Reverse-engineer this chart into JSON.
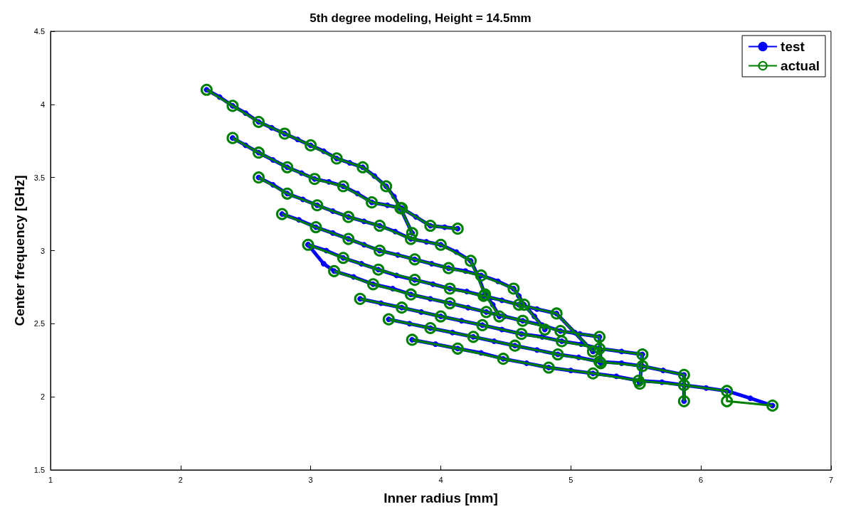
{
  "chart_data": {
    "type": "line",
    "title": "5th degree modeling, Height = 14.5mm",
    "xlabel": "Inner radius [mm]",
    "ylabel": "Center frequency [GHz]",
    "xlim": [
      1,
      7
    ],
    "ylim": [
      1.5,
      4.5
    ],
    "xticks": [
      1,
      2,
      3,
      4,
      5,
      6,
      7
    ],
    "yticks": [
      1.5,
      2,
      2.5,
      3,
      3.5,
      4,
      4.5
    ],
    "grid": false,
    "legend": "top right",
    "series": [
      {
        "name": "test",
        "color": "#0000ff",
        "marker": "circle",
        "x": [
          2.2,
          2.3,
          2.4,
          2.5,
          2.6,
          2.7,
          2.8,
          2.9,
          3.0,
          3.1,
          3.2,
          3.3,
          3.4,
          3.49,
          3.58,
          3.64,
          3.69,
          3.78,
          null,
          2.4,
          2.5,
          2.6,
          2.71,
          2.82,
          2.93,
          3.03,
          3.14,
          3.25,
          3.36,
          3.47,
          3.59,
          3.7,
          3.81,
          3.92,
          4.03,
          4.13,
          null,
          2.6,
          2.71,
          2.82,
          2.94,
          3.05,
          3.17,
          3.29,
          3.41,
          3.53,
          3.65,
          3.77,
          3.89,
          4.0,
          4.12,
          4.23,
          4.29,
          4.34,
          4.4,
          4.45,
          null,
          2.78,
          2.91,
          3.04,
          3.17,
          3.29,
          3.41,
          3.53,
          3.67,
          3.8,
          3.93,
          4.06,
          4.19,
          4.31,
          4.44,
          4.56,
          4.6,
          4.64,
          4.72,
          4.8,
          null,
          2.98,
          3.12,
          3.25,
          3.39,
          3.52,
          3.66,
          3.8,
          3.94,
          4.07,
          4.2,
          4.33,
          4.47,
          4.6,
          4.74,
          4.89,
          5.03,
          5.17,
          null,
          2.98,
          3.1,
          3.18,
          3.33,
          3.48,
          3.63,
          3.77,
          3.92,
          4.07,
          4.21,
          4.35,
          4.49,
          4.63,
          4.78,
          4.92,
          5.07,
          5.22,
          5.23,
          null,
          3.38,
          3.54,
          3.7,
          3.85,
          4.0,
          4.16,
          4.32,
          4.47,
          4.62,
          4.78,
          4.93,
          5.08,
          5.22,
          5.39,
          5.55,
          5.53,
          null,
          3.6,
          3.76,
          3.92,
          4.09,
          4.25,
          4.41,
          4.57,
          4.74,
          4.9,
          5.06,
          5.22,
          5.39,
          5.55,
          5.71,
          5.87,
          5.87,
          null,
          3.78,
          3.96,
          4.13,
          4.31,
          4.48,
          4.66,
          4.83,
          5.0,
          5.17,
          5.35,
          5.52,
          5.7,
          5.87,
          6.04,
          6.2,
          6.38,
          6.55
        ],
        "values": [
          4.1,
          4.05,
          3.99,
          3.94,
          3.88,
          3.84,
          3.8,
          3.76,
          3.72,
          3.68,
          3.63,
          3.6,
          3.57,
          3.51,
          3.44,
          3.37,
          3.29,
          3.12,
          null,
          3.77,
          3.72,
          3.67,
          3.62,
          3.57,
          3.53,
          3.49,
          3.47,
          3.44,
          3.39,
          3.33,
          3.31,
          3.29,
          3.23,
          3.17,
          3.16,
          3.15,
          null,
          3.5,
          3.45,
          3.39,
          3.35,
          3.31,
          3.27,
          3.23,
          3.2,
          3.17,
          3.13,
          3.08,
          3.06,
          3.04,
          2.99,
          2.93,
          2.82,
          2.7,
          2.63,
          2.55,
          null,
          3.25,
          3.21,
          3.16,
          3.12,
          3.08,
          3.04,
          3.0,
          2.97,
          2.94,
          2.91,
          2.88,
          2.86,
          2.83,
          2.79,
          2.74,
          2.69,
          2.63,
          2.55,
          2.46,
          null,
          3.04,
          3.0,
          2.95,
          2.91,
          2.87,
          2.83,
          2.8,
          2.77,
          2.74,
          2.72,
          2.69,
          2.66,
          2.63,
          2.6,
          2.57,
          2.44,
          2.31,
          null,
          3.04,
          2.91,
          2.86,
          2.82,
          2.77,
          2.74,
          2.7,
          2.67,
          2.64,
          2.61,
          2.58,
          2.55,
          2.52,
          2.49,
          2.45,
          2.43,
          2.41,
          2.23,
          null,
          2.67,
          2.64,
          2.61,
          2.58,
          2.55,
          2.52,
          2.49,
          2.46,
          2.43,
          2.41,
          2.38,
          2.36,
          2.33,
          2.31,
          2.29,
          2.09,
          null,
          2.53,
          2.5,
          2.47,
          2.44,
          2.41,
          2.38,
          2.35,
          2.32,
          2.29,
          2.27,
          2.24,
          2.23,
          2.21,
          2.18,
          2.15,
          1.97,
          null,
          2.39,
          2.36,
          2.33,
          2.3,
          2.26,
          2.23,
          2.2,
          2.18,
          2.16,
          2.14,
          2.11,
          2.1,
          2.08,
          2.06,
          2.04,
          1.99,
          1.94
        ]
      },
      {
        "name": "actual",
        "color": "#008000",
        "marker": "circle",
        "x": [
          2.2,
          2.4,
          2.6,
          2.8,
          3.0,
          3.2,
          3.4,
          3.58,
          3.69,
          3.78,
          null,
          2.4,
          2.6,
          2.82,
          3.03,
          3.25,
          3.47,
          3.7,
          3.92,
          4.13,
          null,
          2.6,
          2.82,
          3.05,
          3.29,
          3.53,
          3.77,
          4.0,
          4.23,
          4.34,
          4.45,
          null,
          2.78,
          3.04,
          3.29,
          3.53,
          3.8,
          4.06,
          4.31,
          4.56,
          4.64,
          4.8,
          null,
          2.98,
          3.25,
          3.52,
          3.8,
          4.07,
          4.33,
          4.6,
          4.89,
          5.17,
          null,
          3.18,
          3.48,
          3.77,
          4.07,
          4.35,
          4.63,
          4.92,
          5.22,
          5.23,
          null,
          3.38,
          3.7,
          4.0,
          4.32,
          4.62,
          4.93,
          5.22,
          5.55,
          5.53,
          null,
          3.6,
          3.92,
          4.25,
          4.57,
          4.9,
          5.22,
          5.55,
          5.87,
          5.87,
          null,
          3.78,
          4.13,
          4.48,
          4.83,
          5.17,
          5.52,
          5.87,
          6.2,
          6.2,
          6.55
        ],
        "values": [
          4.1,
          3.99,
          3.88,
          3.8,
          3.72,
          3.63,
          3.57,
          3.44,
          3.29,
          3.12,
          null,
          3.77,
          3.67,
          3.57,
          3.49,
          3.44,
          3.33,
          3.29,
          3.17,
          3.15,
          null,
          3.5,
          3.39,
          3.31,
          3.23,
          3.17,
          3.08,
          3.04,
          2.93,
          2.7,
          2.55,
          null,
          3.25,
          3.16,
          3.08,
          3.0,
          2.94,
          2.88,
          2.83,
          2.74,
          2.63,
          2.46,
          null,
          3.04,
          2.95,
          2.87,
          2.8,
          2.74,
          2.69,
          2.63,
          2.57,
          2.31,
          null,
          2.86,
          2.77,
          2.7,
          2.64,
          2.58,
          2.52,
          2.45,
          2.41,
          2.23,
          null,
          2.67,
          2.61,
          2.55,
          2.49,
          2.43,
          2.38,
          2.33,
          2.29,
          2.09,
          null,
          2.53,
          2.47,
          2.41,
          2.35,
          2.29,
          2.24,
          2.21,
          2.15,
          1.97,
          null,
          2.39,
          2.33,
          2.26,
          2.2,
          2.16,
          2.11,
          2.08,
          2.04,
          1.97,
          1.94
        ]
      }
    ]
  }
}
